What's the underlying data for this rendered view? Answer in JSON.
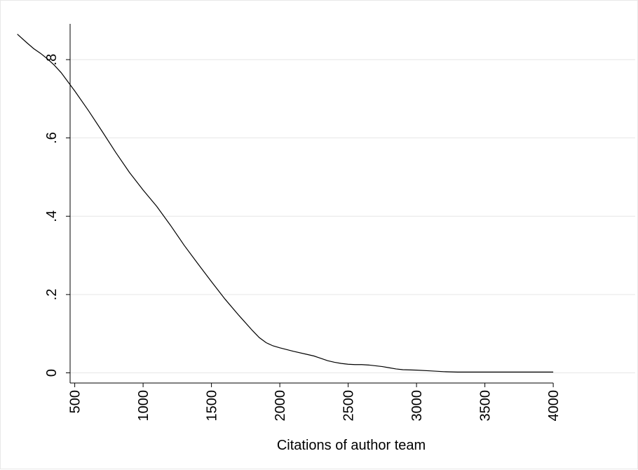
{
  "chart_data": {
    "type": "line",
    "title": "",
    "xlabel": "Citations of author team",
    "ylabel": "",
    "xlim": [
      0,
      4000
    ],
    "ylim": [
      0,
      0.9
    ],
    "x_ticks": [
      500,
      1000,
      1500,
      2000,
      2500,
      3000,
      3500,
      4000
    ],
    "x_tick_labels": [
      "500",
      "1000",
      "1500",
      "2000",
      "2500",
      "3000",
      "3500",
      "4000"
    ],
    "y_ticks": [
      0,
      0.2,
      0.4,
      0.6,
      0.8
    ],
    "y_tick_labels": [
      "0",
      ".2",
      ".4",
      ".6",
      ".8"
    ],
    "grid": "horizontal",
    "colors": {
      "line": "#000000",
      "grid": "#e6e6e6",
      "axis": "#000000"
    },
    "series": [
      {
        "x": [
          80,
          150,
          200,
          250,
          300,
          350,
          400,
          500,
          600,
          700,
          800,
          900,
          1000,
          1100,
          1200,
          1300,
          1400,
          1500,
          1600,
          1700,
          1800,
          1850,
          1900,
          1950,
          2000,
          2100,
          2200,
          2250,
          2300,
          2350,
          2400,
          2450,
          2500,
          2550,
          2600,
          2650,
          2700,
          2750,
          2800,
          2850,
          2900,
          3000,
          3100,
          3200,
          3300,
          3400,
          3500,
          3600,
          3700,
          3800,
          3900,
          4000
        ],
        "y": [
          0.865,
          0.843,
          0.828,
          0.816,
          0.802,
          0.786,
          0.767,
          0.72,
          0.67,
          0.617,
          0.563,
          0.512,
          0.467,
          0.425,
          0.377,
          0.326,
          0.279,
          0.233,
          0.188,
          0.147,
          0.108,
          0.09,
          0.077,
          0.069,
          0.064,
          0.055,
          0.047,
          0.043,
          0.037,
          0.031,
          0.027,
          0.024,
          0.022,
          0.021,
          0.021,
          0.02,
          0.018,
          0.016,
          0.013,
          0.01,
          0.008,
          0.007,
          0.005,
          0.003,
          0.002,
          0.002,
          0.002,
          0.002,
          0.002,
          0.002,
          0.002,
          0.002
        ]
      }
    ]
  }
}
